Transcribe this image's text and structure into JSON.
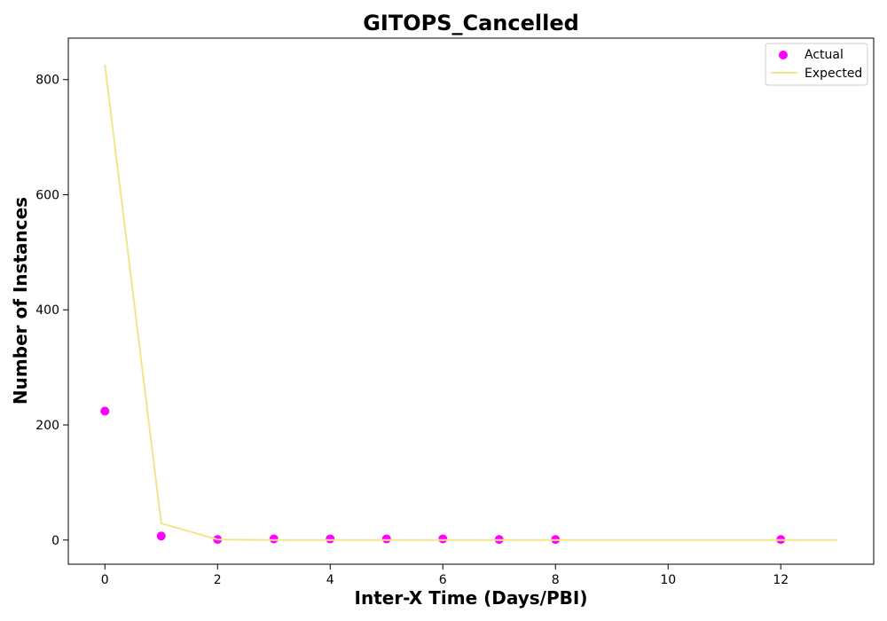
{
  "chart_data": {
    "type": "scatter",
    "title": "GITOPS_Cancelled",
    "xlabel": "Inter-X Time (Days/PBI)",
    "ylabel": "Number of Instances",
    "xlim": [
      -0.65,
      13.65
    ],
    "ylim": [
      -42,
      872
    ],
    "xticks": [
      0,
      2,
      4,
      6,
      8,
      10,
      12
    ],
    "yticks": [
      0,
      200,
      400,
      600,
      800
    ],
    "grid": false,
    "legend_position": "top-right",
    "series": [
      {
        "name": "Actual",
        "kind": "scatter",
        "color": "#ff00ff",
        "x": [
          0,
          1,
          2,
          3,
          4,
          5,
          6,
          7,
          8,
          12
        ],
        "y": [
          224,
          7,
          1,
          2,
          2,
          2,
          2,
          1,
          1,
          1
        ]
      },
      {
        "name": "Expected",
        "kind": "line",
        "color": "#f0e68c",
        "x": [
          0,
          1,
          2,
          3,
          4,
          5,
          6,
          7,
          8,
          9,
          10,
          11,
          12,
          13
        ],
        "y": [
          826,
          29,
          1,
          0,
          0,
          0,
          0,
          0,
          0,
          0,
          0,
          0,
          0,
          0
        ]
      }
    ]
  }
}
